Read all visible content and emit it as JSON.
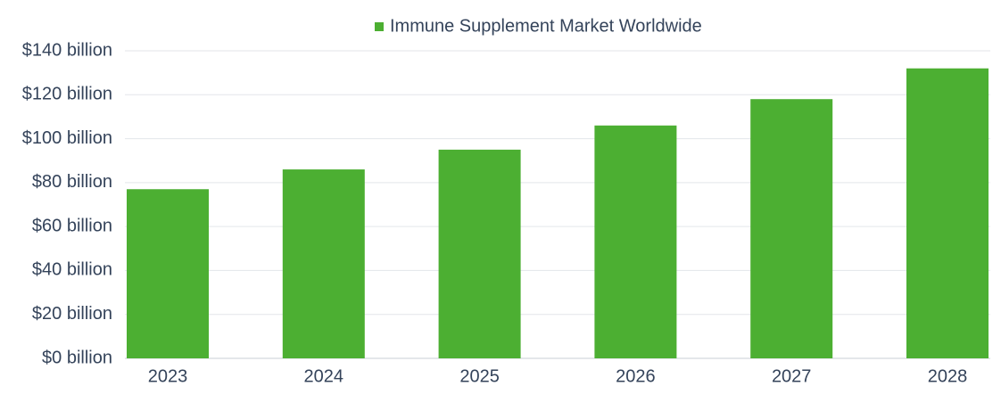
{
  "chart_data": {
    "type": "bar",
    "categories": [
      "2023",
      "2024",
      "2025",
      "2026",
      "2027",
      "2028"
    ],
    "series": [
      {
        "name": "Immune Supplement Market Worldwide",
        "color": "#4caf32",
        "values": [
          77,
          86,
          95,
          106,
          118,
          132
        ]
      }
    ],
    "ylim": [
      0,
      140
    ],
    "yticks": [
      {
        "value": 0,
        "label": "$0 billion"
      },
      {
        "value": 20,
        "label": "$20 billion"
      },
      {
        "value": 40,
        "label": "$40 billion"
      },
      {
        "value": 60,
        "label": "$60 billion"
      },
      {
        "value": 80,
        "label": "$80 billion"
      },
      {
        "value": 100,
        "label": "$100 billion"
      },
      {
        "value": 120,
        "label": "$120 billion"
      },
      {
        "value": 140,
        "label": "$140 billion"
      }
    ],
    "grid": true,
    "legend": "top"
  }
}
